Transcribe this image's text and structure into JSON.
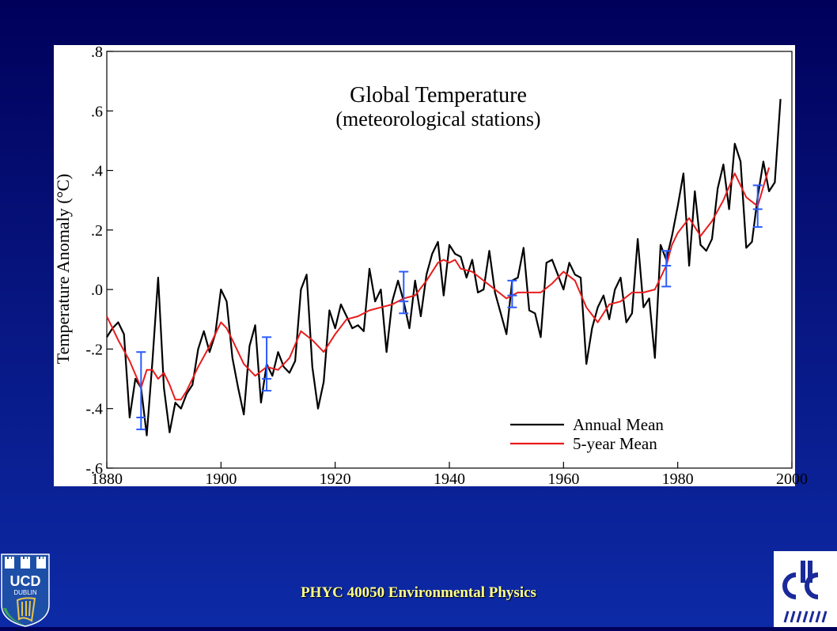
{
  "footer": {
    "course": "PHYC 40050 Environmental Physics"
  },
  "logos": {
    "left_text": "UCD",
    "left_subtext": "DUBLIN",
    "left_icon": "ucd-crest-harp",
    "right_icon": "climate-centre-emblem"
  },
  "colors": {
    "background": "#0d2aa6",
    "annual": "#000000",
    "five_year": "#e81c1c",
    "error_bars": "#2a5cff",
    "footer_text": "#ffff88"
  },
  "chart_data": {
    "type": "line",
    "title": "Global Temperature",
    "subtitle": "(meteorological stations)",
    "xlabel": "",
    "ylabel": "Temperature Anomaly (°C)",
    "xlim": [
      1880,
      2000
    ],
    "ylim": [
      -0.6,
      0.8
    ],
    "xticks": [
      1880,
      1900,
      1920,
      1940,
      1960,
      1980,
      2000
    ],
    "xtick_labels": [
      "1880",
      "1900",
      "1920",
      "1940",
      "1960",
      "1980",
      "2000"
    ],
    "yticks": [
      -0.6,
      -0.4,
      -0.2,
      0.0,
      0.2,
      0.4,
      0.6,
      0.8
    ],
    "ytick_labels": [
      "-.6",
      "-.4",
      "-.2",
      ".0",
      ".2",
      ".4",
      ".6",
      ".8"
    ],
    "legend": "bottom-right",
    "grid": false,
    "series": [
      {
        "name": "Annual Mean",
        "color": "#000000",
        "x": [
          1880,
          1881,
          1882,
          1883,
          1884,
          1885,
          1886,
          1887,
          1888,
          1889,
          1890,
          1891,
          1892,
          1893,
          1894,
          1895,
          1896,
          1897,
          1898,
          1899,
          1900,
          1901,
          1902,
          1903,
          1904,
          1905,
          1906,
          1907,
          1908,
          1909,
          1910,
          1911,
          1912,
          1913,
          1914,
          1915,
          1916,
          1917,
          1918,
          1919,
          1920,
          1921,
          1922,
          1923,
          1924,
          1925,
          1926,
          1927,
          1928,
          1929,
          1930,
          1931,
          1932,
          1933,
          1934,
          1935,
          1936,
          1937,
          1938,
          1939,
          1940,
          1941,
          1942,
          1943,
          1944,
          1945,
          1946,
          1947,
          1948,
          1949,
          1950,
          1951,
          1952,
          1953,
          1954,
          1955,
          1956,
          1957,
          1958,
          1959,
          1960,
          1961,
          1962,
          1963,
          1964,
          1965,
          1966,
          1967,
          1968,
          1969,
          1970,
          1971,
          1972,
          1973,
          1974,
          1975,
          1976,
          1977,
          1978,
          1979,
          1980,
          1981,
          1982,
          1983,
          1984,
          1985,
          1986,
          1987,
          1988,
          1989,
          1990,
          1991,
          1992,
          1993,
          1994,
          1995,
          1996,
          1997,
          1998
        ],
        "values": [
          -0.16,
          -0.13,
          -0.11,
          -0.15,
          -0.43,
          -0.3,
          -0.33,
          -0.49,
          -0.24,
          0.04,
          -0.33,
          -0.48,
          -0.38,
          -0.4,
          -0.35,
          -0.32,
          -0.2,
          -0.14,
          -0.21,
          -0.15,
          0.0,
          -0.04,
          -0.23,
          -0.33,
          -0.42,
          -0.19,
          -0.12,
          -0.38,
          -0.25,
          -0.29,
          -0.21,
          -0.26,
          -0.28,
          -0.24,
          0.0,
          0.05,
          -0.26,
          -0.4,
          -0.31,
          -0.07,
          -0.13,
          -0.05,
          -0.09,
          -0.13,
          -0.12,
          -0.14,
          0.07,
          -0.04,
          0.0,
          -0.21,
          -0.04,
          0.03,
          -0.04,
          -0.13,
          0.03,
          -0.09,
          0.05,
          0.12,
          0.16,
          -0.02,
          0.15,
          0.12,
          0.11,
          0.04,
          0.1,
          -0.01,
          0.0,
          0.13,
          -0.01,
          -0.08,
          -0.15,
          0.03,
          0.04,
          0.14,
          -0.07,
          -0.08,
          -0.16,
          0.09,
          0.1,
          0.05,
          0.0,
          0.09,
          0.05,
          0.04,
          -0.25,
          -0.13,
          -0.06,
          -0.02,
          -0.1,
          0.0,
          0.04,
          -0.11,
          -0.08,
          0.17,
          -0.06,
          -0.03,
          -0.23,
          0.15,
          0.1,
          0.18,
          0.28,
          0.39,
          0.08,
          0.33,
          0.15,
          0.13,
          0.17,
          0.34,
          0.42,
          0.27,
          0.49,
          0.43,
          0.14,
          0.16,
          0.31,
          0.43,
          0.33,
          0.36,
          0.64
        ]
      },
      {
        "name": "5-year Mean",
        "color": "#e81c1c",
        "x": [
          1880,
          1882,
          1884,
          1886,
          1887,
          1888,
          1889,
          1890,
          1891,
          1892,
          1893,
          1894,
          1896,
          1898,
          1900,
          1901,
          1902,
          1904,
          1906,
          1908,
          1910,
          1912,
          1914,
          1916,
          1918,
          1920,
          1922,
          1924,
          1926,
          1928,
          1930,
          1932,
          1934,
          1936,
          1938,
          1939,
          1940,
          1941,
          1942,
          1944,
          1946,
          1948,
          1950,
          1952,
          1954,
          1956,
          1958,
          1960,
          1962,
          1964,
          1966,
          1968,
          1970,
          1972,
          1974,
          1976,
          1978,
          1979,
          1980,
          1982,
          1984,
          1986,
          1988,
          1990,
          1992,
          1994,
          1996
        ],
        "values": [
          -0.09,
          -0.17,
          -0.24,
          -0.33,
          -0.27,
          -0.27,
          -0.3,
          -0.28,
          -0.32,
          -0.37,
          -0.37,
          -0.34,
          -0.26,
          -0.19,
          -0.11,
          -0.13,
          -0.17,
          -0.25,
          -0.29,
          -0.26,
          -0.27,
          -0.23,
          -0.14,
          -0.17,
          -0.21,
          -0.15,
          -0.1,
          -0.09,
          -0.07,
          -0.06,
          -0.05,
          -0.03,
          -0.02,
          0.03,
          0.09,
          0.1,
          0.09,
          0.1,
          0.07,
          0.06,
          0.03,
          0.0,
          -0.03,
          -0.01,
          -0.01,
          -0.01,
          0.02,
          0.06,
          0.03,
          -0.06,
          -0.11,
          -0.05,
          -0.04,
          -0.01,
          -0.01,
          0.0,
          0.08,
          0.15,
          0.19,
          0.24,
          0.18,
          0.23,
          0.3,
          0.39,
          0.31,
          0.28,
          0.41
        ]
      }
    ],
    "error_bars": [
      {
        "x": 1886,
        "low": -0.47,
        "high": -0.21,
        "mid": -0.43
      },
      {
        "x": 1908,
        "low": -0.34,
        "high": -0.16,
        "mid": -0.3
      },
      {
        "x": 1932,
        "low": -0.08,
        "high": 0.06,
        "mid": -0.04
      },
      {
        "x": 1951,
        "low": -0.06,
        "high": 0.03,
        "mid": -0.02
      },
      {
        "x": 1978,
        "low": 0.01,
        "high": 0.13,
        "mid": 0.08
      },
      {
        "x": 1994,
        "low": 0.21,
        "high": 0.35,
        "mid": 0.27
      }
    ]
  }
}
